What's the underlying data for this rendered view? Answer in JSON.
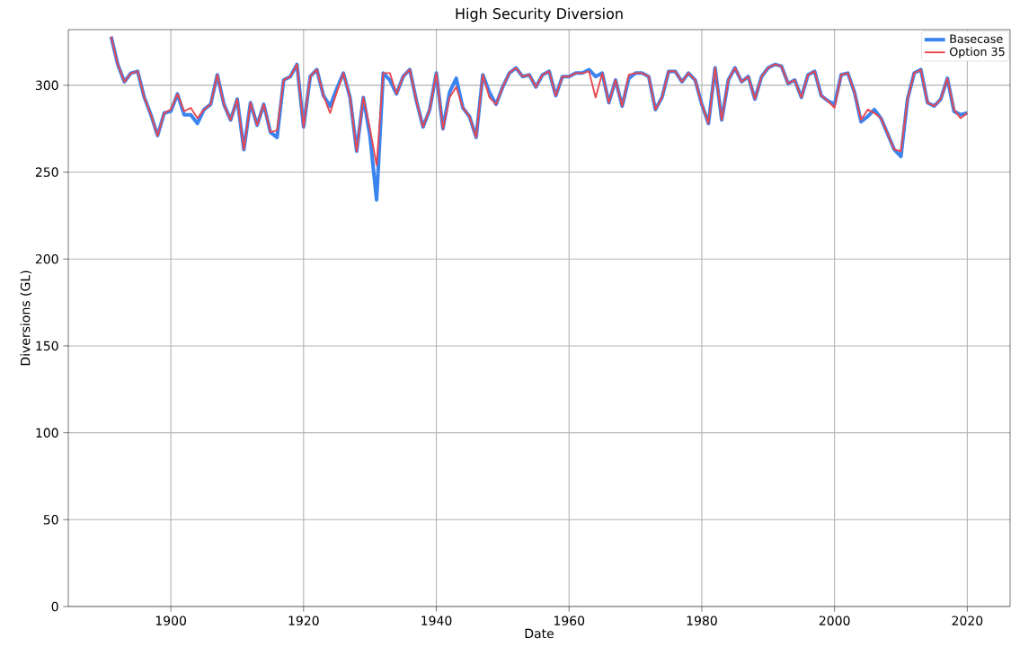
{
  "chart_data": {
    "type": "line",
    "title": "High Security Diversion",
    "xlabel": "Date",
    "ylabel": "Diversions (GL)",
    "x": [
      1891,
      1892,
      1893,
      1894,
      1895,
      1896,
      1897,
      1898,
      1899,
      1900,
      1901,
      1902,
      1903,
      1904,
      1905,
      1906,
      1907,
      1908,
      1909,
      1910,
      1911,
      1912,
      1913,
      1914,
      1915,
      1916,
      1917,
      1918,
      1919,
      1920,
      1921,
      1922,
      1923,
      1924,
      1925,
      1926,
      1927,
      1928,
      1929,
      1930,
      1931,
      1932,
      1933,
      1934,
      1935,
      1936,
      1937,
      1938,
      1939,
      1940,
      1941,
      1942,
      1943,
      1944,
      1945,
      1946,
      1947,
      1948,
      1949,
      1950,
      1951,
      1952,
      1953,
      1954,
      1955,
      1956,
      1957,
      1958,
      1959,
      1960,
      1961,
      1962,
      1963,
      1964,
      1965,
      1966,
      1967,
      1968,
      1969,
      1970,
      1971,
      1972,
      1973,
      1974,
      1975,
      1976,
      1977,
      1978,
      1979,
      1980,
      1981,
      1982,
      1983,
      1984,
      1985,
      1986,
      1987,
      1988,
      1989,
      1990,
      1991,
      1992,
      1993,
      1994,
      1995,
      1996,
      1997,
      1998,
      1999,
      2000,
      2001,
      2002,
      2003,
      2004,
      2005,
      2006,
      2007,
      2008,
      2009,
      2010,
      2011,
      2012,
      2013,
      2014,
      2015,
      2016,
      2017,
      2018,
      2019,
      2020
    ],
    "series": [
      {
        "name": "Basecase",
        "color": "#3b84f0",
        "values": [
          328,
          312,
          302,
          307,
          308,
          293,
          283,
          271,
          284,
          285,
          295,
          283,
          283,
          278,
          286,
          289,
          306,
          289,
          280,
          292,
          263,
          290,
          277,
          289,
          273,
          270,
          303,
          305,
          312,
          276,
          305,
          309,
          294,
          288,
          298,
          307,
          293,
          262,
          293,
          271,
          234,
          307,
          303,
          295,
          305,
          309,
          291,
          276,
          286,
          307,
          275,
          296,
          304,
          287,
          282,
          270,
          306,
          296,
          289,
          299,
          307,
          310,
          305,
          306,
          299,
          306,
          308,
          294,
          305,
          305,
          307,
          307,
          309,
          305,
          307,
          290,
          303,
          288,
          304,
          307,
          307,
          305,
          286,
          293,
          308,
          308,
          302,
          307,
          303,
          289,
          278,
          310,
          280,
          303,
          310,
          302,
          305,
          292,
          305,
          310,
          312,
          311,
          301,
          303,
          293,
          306,
          308,
          294,
          291,
          289,
          306,
          307,
          296,
          279,
          282,
          286,
          281,
          272,
          263,
          259,
          292,
          307,
          309,
          290,
          288,
          292,
          304,
          285,
          283,
          284
        ]
      },
      {
        "name": "Option 35",
        "color": "#e8474f",
        "values": [
          328,
          312,
          302,
          307,
          308,
          293,
          283,
          271,
          284,
          286,
          295,
          285,
          287,
          281,
          286,
          289,
          306,
          289,
          280,
          292,
          263,
          290,
          277,
          289,
          273,
          274,
          303,
          305,
          312,
          276,
          305,
          309,
          294,
          284,
          296,
          307,
          293,
          262,
          293,
          275,
          254,
          307,
          307,
          295,
          305,
          309,
          291,
          276,
          286,
          307,
          275,
          293,
          299,
          287,
          282,
          270,
          306,
          293,
          289,
          299,
          307,
          310,
          305,
          306,
          299,
          306,
          308,
          294,
          305,
          305,
          307,
          307,
          308,
          293,
          307,
          290,
          303,
          288,
          306,
          307,
          307,
          305,
          286,
          293,
          308,
          308,
          302,
          307,
          303,
          289,
          278,
          310,
          280,
          303,
          310,
          302,
          305,
          292,
          305,
          310,
          312,
          311,
          301,
          303,
          293,
          306,
          308,
          294,
          291,
          287,
          306,
          307,
          296,
          280,
          286,
          284,
          281,
          272,
          263,
          262,
          292,
          307,
          309,
          290,
          288,
          292,
          304,
          286,
          281,
          284
        ]
      }
    ],
    "xlim": [
      1884.55,
      2026.45
    ],
    "ylim": [
      0,
      332
    ],
    "xticks": [
      1900,
      1920,
      1940,
      1960,
      1980,
      2000,
      2020
    ],
    "yticks": [
      0,
      50,
      100,
      150,
      200,
      250,
      300
    ],
    "grid": true,
    "legend": "top right"
  }
}
